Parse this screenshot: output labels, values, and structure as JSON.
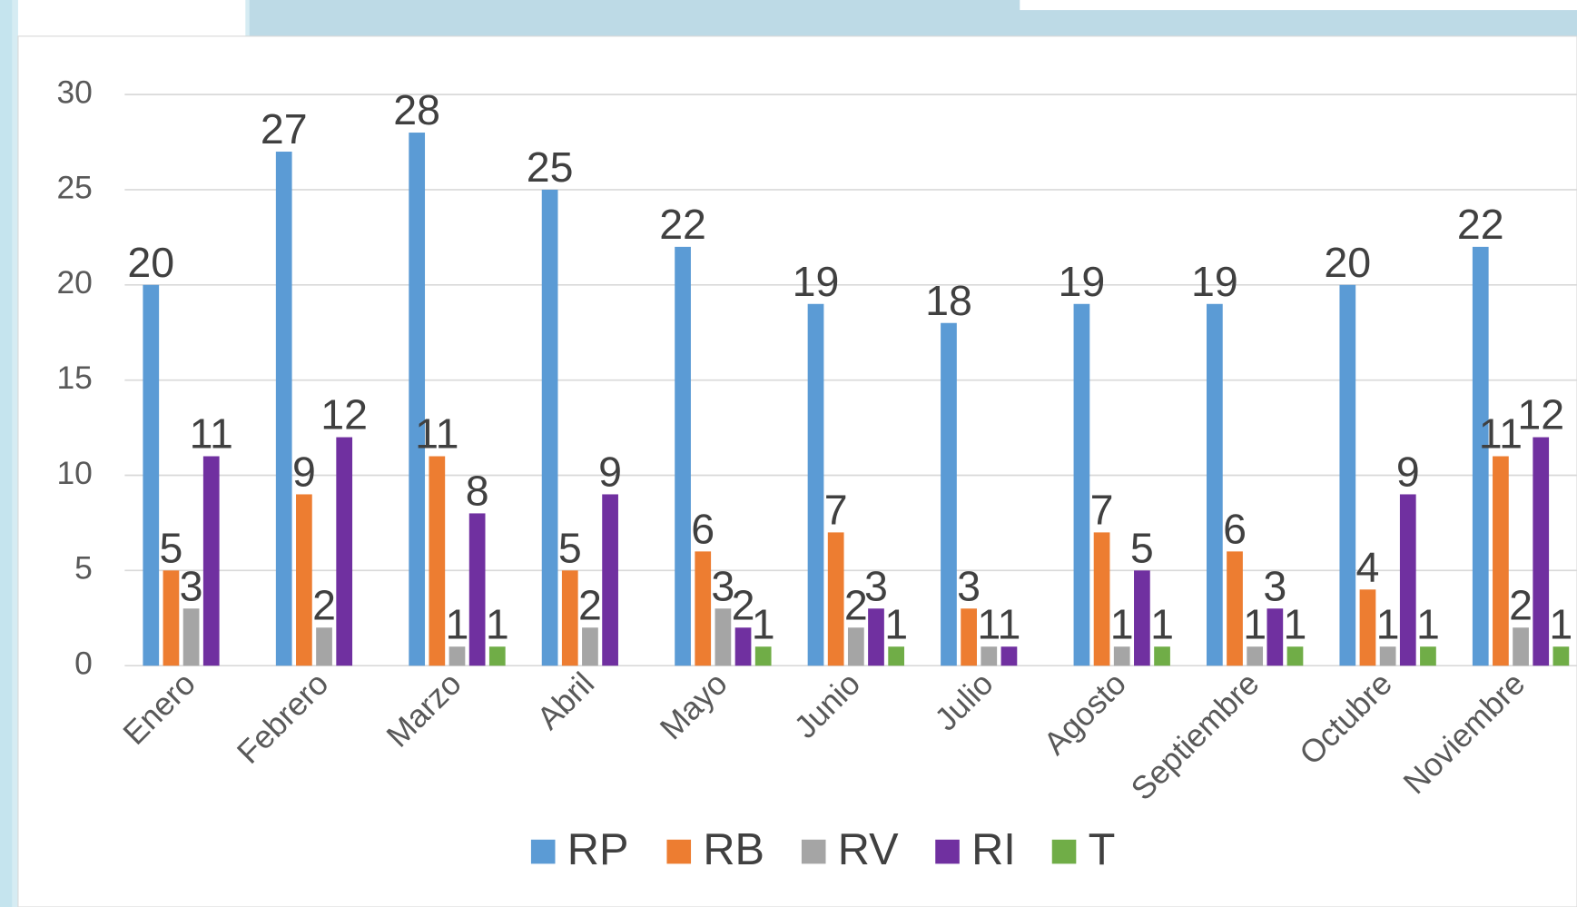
{
  "chart_data": {
    "type": "bar",
    "categories": [
      "Enero",
      "Febrero",
      "Marzo",
      "Abril",
      "Mayo",
      "Junio",
      "Julio",
      "Agosto",
      "Septiembre",
      "Octubre",
      "Noviembre"
    ],
    "series": [
      {
        "name": "RP",
        "color": "#5b9bd5",
        "values": [
          20,
          27,
          28,
          25,
          22,
          19,
          18,
          19,
          19,
          20,
          22
        ]
      },
      {
        "name": "RB",
        "color": "#ed7d31",
        "values": [
          5,
          9,
          11,
          5,
          6,
          7,
          3,
          7,
          6,
          4,
          11
        ]
      },
      {
        "name": "RV",
        "color": "#a5a5a5",
        "values": [
          3,
          2,
          1,
          2,
          3,
          2,
          1,
          1,
          1,
          1,
          2
        ]
      },
      {
        "name": "RI",
        "color": "#7030a0",
        "values": [
          11,
          12,
          8,
          9,
          2,
          3,
          1,
          5,
          3,
          9,
          12
        ]
      },
      {
        "name": "T",
        "color": "#70ad47",
        "values": [
          null,
          null,
          1,
          null,
          1,
          1,
          null,
          1,
          1,
          1,
          1
        ]
      }
    ],
    "ylim": [
      0,
      30
    ],
    "yticks": [
      0,
      5,
      10,
      15,
      20,
      25,
      30
    ],
    "grid": true,
    "legend": "bottom"
  }
}
